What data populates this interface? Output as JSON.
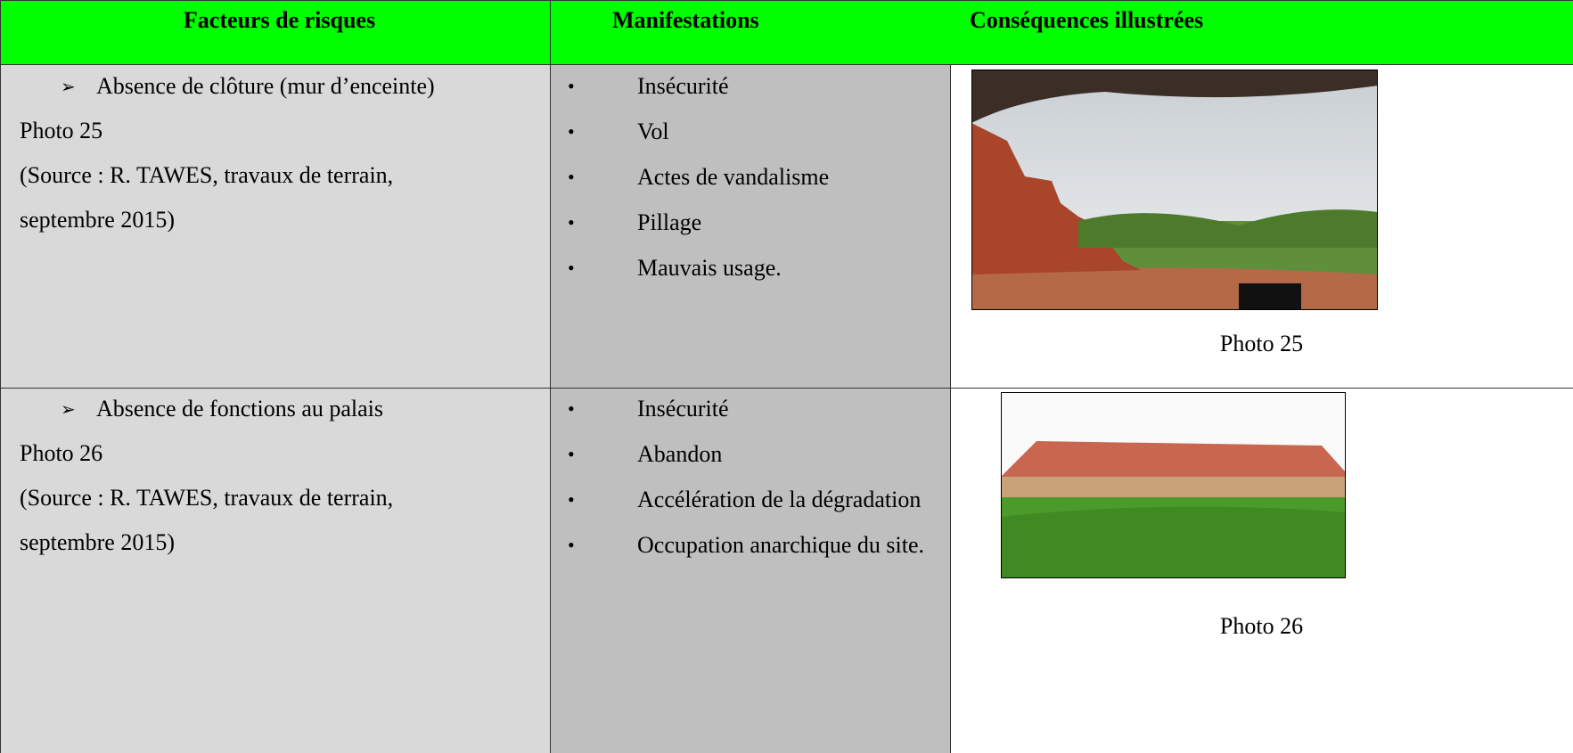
{
  "table": {
    "header": [
      "Facteurs de risques",
      "Manifestations",
      "Conséquences illustrées"
    ],
    "rows": [
      {
        "factor": "Absence de clôture (mur d’enceinte)",
        "photo_ref": "Photo 25",
        "source": [
          "(Source : R. TAWES, travaux de terrain,",
          "septembre 2015)"
        ],
        "manifestations": [
          "Insécurité",
          "Vol",
          "Actes de vandalisme",
          "Pillage",
          "Mauvais usage."
        ],
        "caption": "Photo 25"
      },
      {
        "factor": "Absence de fonctions au palais",
        "photo_ref": "Photo 26",
        "source": [
          "(Source : R. TAWES, travaux de terrain,",
          "septembre 2015)"
        ],
        "manifestations": [
          "Insécurité",
          "Abandon",
          "Accélération de la dégradation",
          "Occupation anarchique du site."
        ],
        "caption": "Photo 26"
      }
    ]
  }
}
